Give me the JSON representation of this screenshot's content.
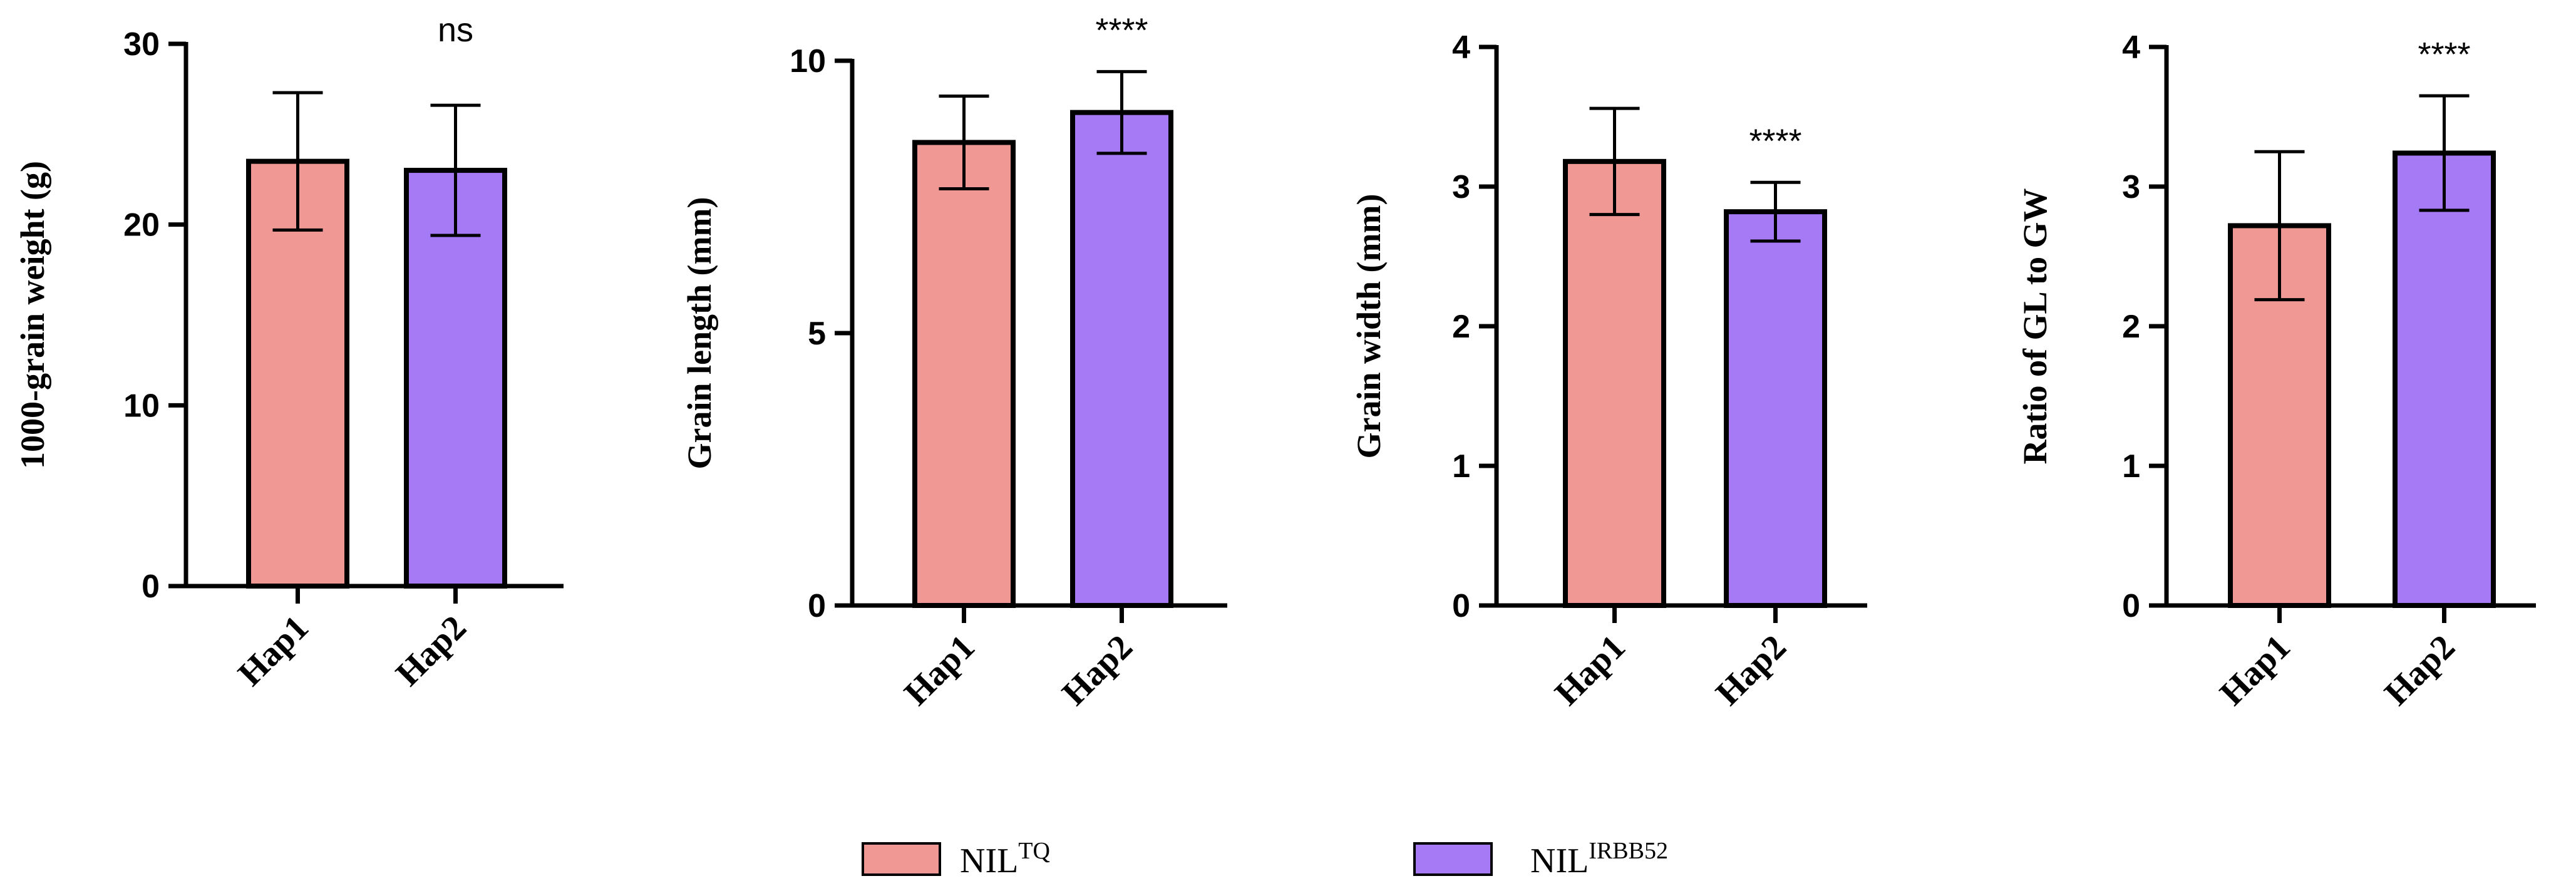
{
  "chart_data": [
    {
      "type": "bar",
      "ylabel": "1000-grain weight (g)",
      "categories": [
        "Hap1",
        "Hap2"
      ],
      "values": [
        23.5,
        23.0
      ],
      "errors": [
        3.8,
        3.6
      ],
      "ylim": [
        0,
        30
      ],
      "yticks": [
        0,
        10,
        20,
        30
      ],
      "significance": "ns"
    },
    {
      "type": "bar",
      "ylabel": "Grain length (mm)",
      "categories": [
        "Hap1",
        "Hap2"
      ],
      "values": [
        8.5,
        9.05
      ],
      "errors": [
        0.85,
        0.75
      ],
      "ylim": [
        0,
        10
      ],
      "yticks": [
        0,
        5,
        10
      ],
      "significance": "****"
    },
    {
      "type": "bar",
      "ylabel": "Grain width (mm)",
      "categories": [
        "Hap1",
        "Hap2"
      ],
      "values": [
        3.18,
        2.82
      ],
      "errors": [
        0.38,
        0.21
      ],
      "ylim": [
        0,
        4
      ],
      "yticks": [
        0,
        1,
        2,
        3,
        4
      ],
      "significance": "****"
    },
    {
      "type": "bar",
      "ylabel": "Ratio of GL to GW",
      "categories": [
        "Hap1",
        "Hap2"
      ],
      "values": [
        2.72,
        3.24
      ],
      "errors": [
        0.53,
        0.41
      ],
      "ylim": [
        0,
        4
      ],
      "yticks": [
        0,
        1,
        2,
        3,
        4
      ],
      "significance": "****"
    }
  ],
  "legend": [
    {
      "base": "NIL",
      "sup": "TQ",
      "color": "#f09894"
    },
    {
      "base": "NIL",
      "sup": "IRBB52",
      "color": "#a679f5"
    }
  ],
  "colors": {
    "hap1": "#f09894",
    "hap2": "#a679f5"
  }
}
